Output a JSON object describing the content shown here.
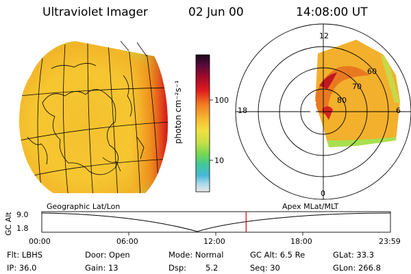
{
  "header": {
    "title": "Ultraviolet Imager",
    "date": "02 Jun 00",
    "time": "14:08:00 UT"
  },
  "colorbar": {
    "unit_label": "photon cm⁻²s⁻¹",
    "ticks": [
      "100",
      "10"
    ]
  },
  "polar_plot": {
    "mlt_labels": [
      "12",
      "18",
      "6",
      "0"
    ],
    "mlat_labels": [
      "60",
      "70",
      "80"
    ]
  },
  "panel_labels": {
    "left": "Geographic Lat/Lon",
    "right": "Apex MLat/MLT"
  },
  "altitude_plot": {
    "axis_title": "GC Alt",
    "y_ticks": [
      "9.0",
      "1.8"
    ],
    "x_ticks": [
      "00:00",
      "06:00",
      "12:00",
      "18:00",
      "23:59"
    ],
    "current_time_fraction": 0.586
  },
  "info": {
    "flt": "Flt: LBHS",
    "ip": "IP: 36.0",
    "door": "Door: Open",
    "gain": "Gain: 13",
    "mode": "Mode: Normal",
    "dsp_label": "Dsp:",
    "dsp_value": "5.2",
    "gc_alt": "GC Alt: 6.5 Re",
    "seq": "Seq: 30",
    "glat": "GLat: 33.3",
    "glon": "GLon: 266.8"
  },
  "colors": {
    "image_base": "#f5c230",
    "image_edge_green": "#8fd846",
    "aurora_red": "#d01018",
    "time_marker": "#d00000"
  }
}
